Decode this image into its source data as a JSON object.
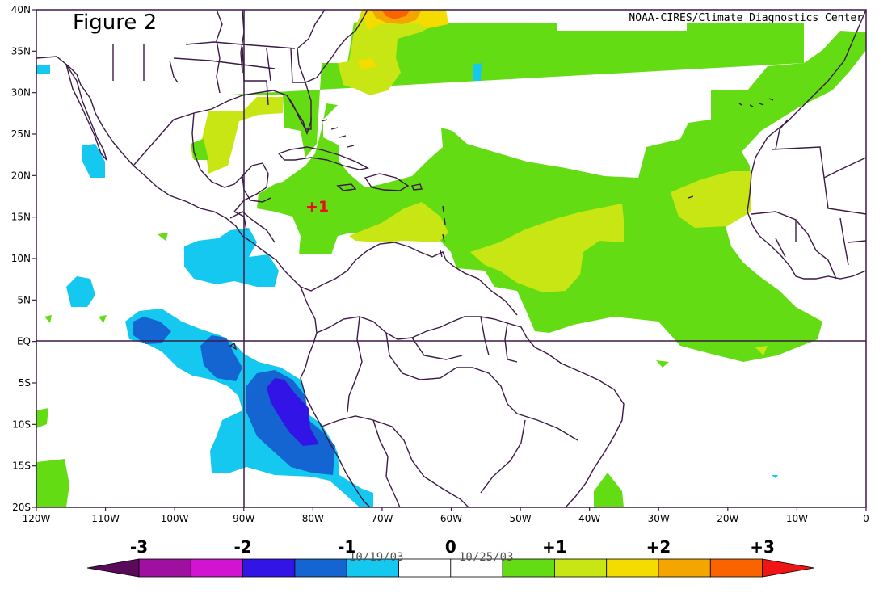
{
  "figure_label": "Figure 2",
  "credit": "NOAA-CIRES/Climate Diagnostics Center",
  "map_annotation": "+1",
  "date_range_fragments": [
    "10/19/03",
    "10/25/03"
  ],
  "axes": {
    "lat_labels": [
      "40N",
      "35N",
      "30N",
      "25N",
      "20N",
      "15N",
      "10N",
      "5N",
      "EQ",
      "5S",
      "10S",
      "15S",
      "20S"
    ],
    "lon_labels": [
      "120W",
      "110W",
      "100W",
      "90W",
      "80W",
      "70W",
      "60W",
      "50W",
      "40W",
      "30W",
      "20W",
      "10W",
      "0"
    ]
  },
  "colorbar": {
    "tick_labels": [
      "-3",
      "-2",
      "-1",
      "0",
      "+1",
      "+2",
      "+3"
    ],
    "colors": [
      "#5a0a5a",
      "#a010a0",
      "#d214d2",
      "#3214e6",
      "#1464d2",
      "#14c8f0",
      "#ffffff",
      "#ffffff",
      "#64dc14",
      "#c8e614",
      "#f5dc00",
      "#f5a500",
      "#fa6400",
      "#f01414"
    ]
  },
  "fill_colors": {
    "light_green": "#64dc14",
    "yellow_green": "#c8e614",
    "yellow": "#f5dc00",
    "orange": "#f5a500",
    "red_orange": "#fa6400",
    "cyan": "#14c8f0",
    "medium_blue": "#1464d2",
    "deep_blue": "#3214e6",
    "coast": "#3c1a46"
  }
}
